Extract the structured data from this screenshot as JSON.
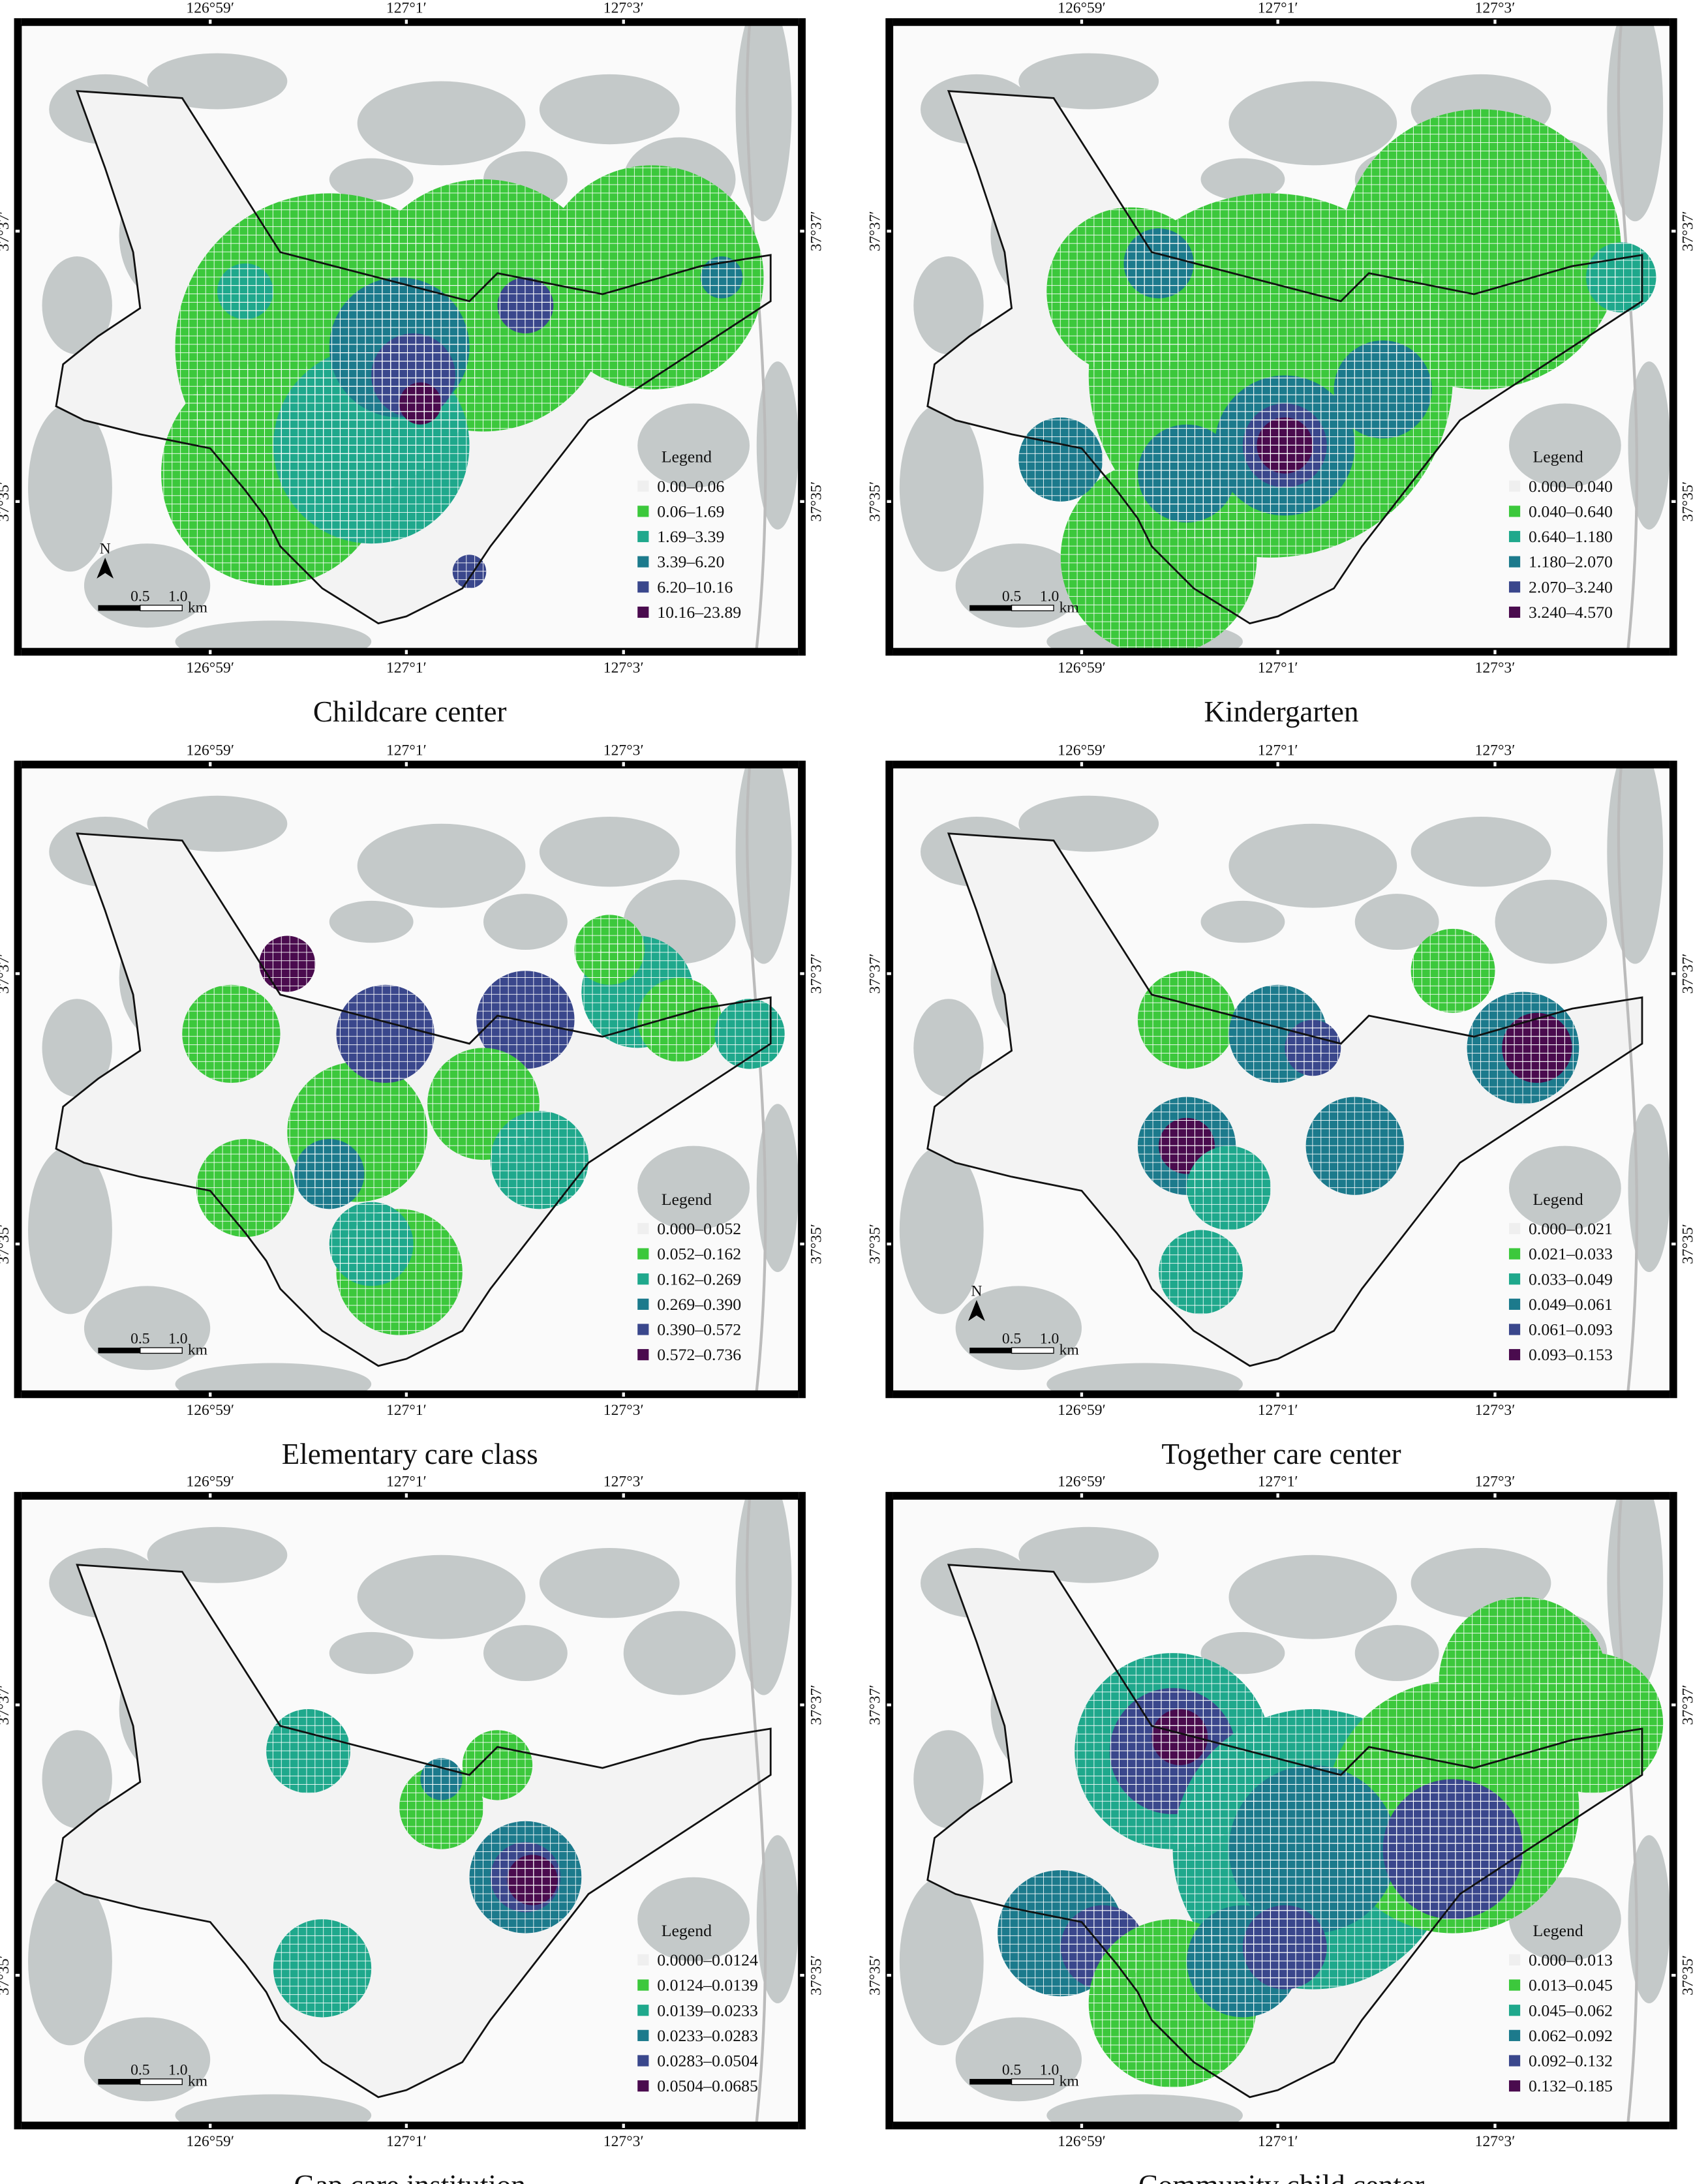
{
  "legend_colors": [
    "#efefef",
    "#3cc83c",
    "#1fa88c",
    "#1c7a8c",
    "#3a478c",
    "#4a0b4e"
  ],
  "panels": [
    {
      "title": "Childcare center",
      "legend_title": "Legend",
      "legend": [
        "0.00–0.06",
        "0.06–1.69",
        "1.69–3.39",
        "3.39–6.20",
        "6.20–10.16",
        "10.16–23.89"
      ],
      "lon_top": [
        "126°59′",
        "127°1′",
        "127°3′"
      ],
      "lon_bottom": [
        "126°59′",
        "127°1′",
        "127°3′"
      ],
      "lat_left": [
        "37°37′",
        "37°35′"
      ],
      "lat_right": [
        "37°37′",
        "37°35′"
      ],
      "scale": [
        "0.5",
        "1.0",
        "km"
      ],
      "north": "N"
    },
    {
      "title": "Kindergarten",
      "legend_title": "Legend",
      "legend": [
        "0.000–0.040",
        "0.040–0.640",
        "0.640–1.180",
        "1.180–2.070",
        "2.070–3.240",
        "3.240–4.570"
      ],
      "lon_top": [
        "126°59′",
        "127°1′",
        "127°3′"
      ],
      "lon_bottom": [
        "126°59′",
        "127°1′",
        "127°3′"
      ],
      "lat_left": [
        "37°37′",
        "37°35′"
      ],
      "lat_right": [
        "37°37′",
        "37°35′"
      ],
      "scale": [
        "0.5",
        "1.0",
        "km"
      ]
    },
    {
      "title": "Elementary care class",
      "legend_title": "Legend",
      "legend": [
        "0.000–0.052",
        "0.052–0.162",
        "0.162–0.269",
        "0.269–0.390",
        "0.390–0.572",
        "0.572–0.736"
      ],
      "lon_top": [
        "126°59′",
        "127°1′",
        "127°3′"
      ],
      "lon_bottom": [
        "126°59′",
        "127°1′",
        "127°3′"
      ],
      "lat_left": [
        "37°37′",
        "37°35′"
      ],
      "lat_right": [
        "37°37′",
        "37°35′"
      ],
      "scale": [
        "0.5",
        "1.0",
        "km"
      ]
    },
    {
      "title": "Together care center",
      "legend_title": "Legend",
      "legend": [
        "0.000–0.021",
        "0.021–0.033",
        "0.033–0.049",
        "0.049–0.061",
        "0.061–0.093",
        "0.093–0.153"
      ],
      "lon_top": [
        "126°59′",
        "127°1′",
        "127°3′"
      ],
      "lon_bottom": [
        "126°59′",
        "127°1′",
        "127°3′"
      ],
      "lat_left": [
        "37°37′",
        "37°35′"
      ],
      "lat_right": [
        "37°37′",
        "37°35′"
      ],
      "scale": [
        "0.5",
        "1.0",
        "km"
      ],
      "north": "N"
    },
    {
      "title": "Gap care institution",
      "legend_title": "Legend",
      "legend": [
        "0.0000–0.0124",
        "0.0124–0.0139",
        "0.0139–0.0233",
        "0.0233–0.0283",
        "0.0283–0.0504",
        "0.0504–0.0685"
      ],
      "lon_top": [
        "126°59′",
        "127°1′",
        "127°3′"
      ],
      "lon_bottom": [
        "126°59′",
        "127°1′",
        "127°3′"
      ],
      "lat_left": [
        "37°37′",
        "37°35′"
      ],
      "lat_right": [
        "37°37′",
        "37°35′"
      ],
      "scale": [
        "0.5",
        "1.0",
        "km"
      ]
    },
    {
      "title": "Community child center",
      "legend_title": "Legend",
      "legend": [
        "0.000–0.013",
        "0.013–0.045",
        "0.045–0.062",
        "0.062–0.092",
        "0.092–0.132",
        "0.132–0.185"
      ],
      "lon_top": [
        "126°59′",
        "127°1′",
        "127°3′"
      ],
      "lon_bottom": [
        "126°59′",
        "127°1′",
        "127°3′"
      ],
      "lat_left": [
        "37°37′",
        "37°35′"
      ],
      "lat_right": [
        "37°37′",
        "37°35′"
      ],
      "scale": [
        "0.5",
        "1.0",
        "km"
      ]
    }
  ]
}
